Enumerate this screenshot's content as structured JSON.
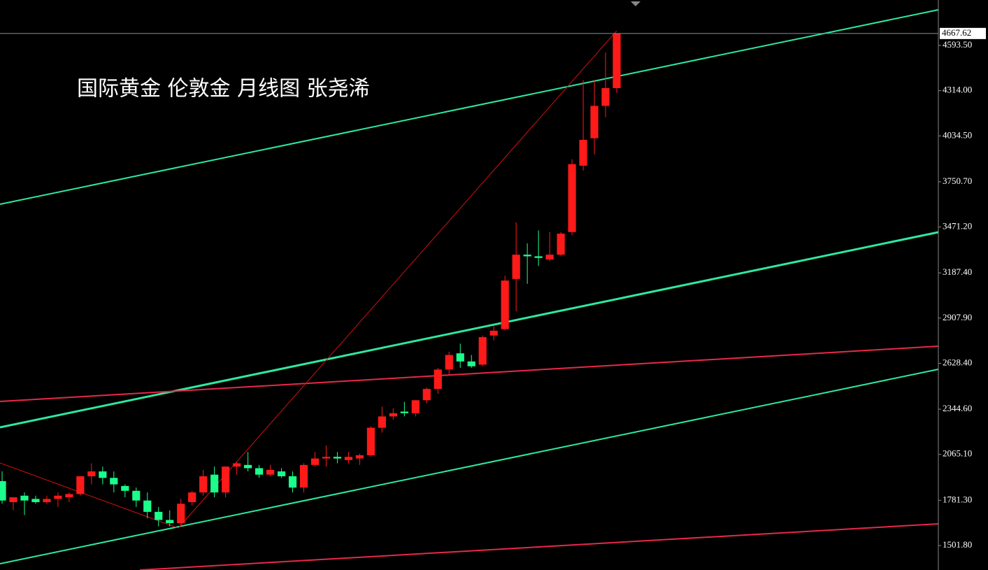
{
  "chart_data": {
    "type": "candlestick",
    "title": "国际黄金 伦敦金 月线图 张尧浠",
    "open": [
      1900,
      1770,
      1810,
      1790,
      1770,
      1790,
      1800,
      1820,
      1930,
      1960,
      1920,
      1870,
      1840,
      1780,
      1710,
      1660,
      1640,
      1770,
      1830,
      1940,
      1830,
      1990,
      2000,
      1980,
      1940,
      1960,
      1930,
      1860,
      2000,
      2040,
      2050,
      2030,
      2040,
      2060,
      2230,
      2300,
      2330,
      2320,
      2400,
      2470,
      2590,
      2690,
      2640,
      2620,
      2800,
      2840,
      3150,
      3300,
      3290,
      3270,
      3300,
      3440,
      3850,
      4020,
      4220,
      4330
    ],
    "high": [
      1960,
      1800,
      1830,
      1810,
      1810,
      1830,
      1830,
      1920,
      2010,
      1990,
      1960,
      1880,
      1860,
      1830,
      1740,
      1720,
      1790,
      1840,
      1970,
      1990,
      1990,
      2020,
      2080,
      2000,
      2000,
      1980,
      1960,
      2010,
      2080,
      2120,
      2080,
      2080,
      2070,
      2240,
      2360,
      2350,
      2390,
      2400,
      2480,
      2600,
      2700,
      2750,
      2680,
      2800,
      2860,
      3170,
      3500,
      3370,
      3450,
      3440,
      3440,
      3890,
      4380,
      4380,
      4550,
      4667.62
    ],
    "low": [
      1760,
      1720,
      1690,
      1760,
      1760,
      1740,
      1770,
      1810,
      1880,
      1880,
      1830,
      1800,
      1740,
      1670,
      1620,
      1620,
      1620,
      1750,
      1810,
      1800,
      1800,
      1940,
      1960,
      1920,
      1930,
      1920,
      1830,
      1830,
      1990,
      1990,
      2010,
      2010,
      2000,
      2050,
      2200,
      2280,
      2300,
      2300,
      2380,
      2440,
      2560,
      2600,
      2600,
      2610,
      2770,
      2830,
      2950,
      3120,
      3230,
      3260,
      3290,
      3420,
      3820,
      3920,
      4150,
      4300
    ],
    "close": [
      1780,
      1800,
      1780,
      1770,
      1790,
      1810,
      1820,
      1930,
      1960,
      1920,
      1880,
      1840,
      1780,
      1710,
      1660,
      1640,
      1760,
      1830,
      1930,
      1830,
      1990,
      2010,
      1980,
      1940,
      1970,
      1930,
      1860,
      2000,
      2040,
      2050,
      2040,
      2050,
      2060,
      2230,
      2300,
      2320,
      2320,
      2400,
      2470,
      2590,
      2680,
      2640,
      2610,
      2790,
      2830,
      3140,
      3300,
      3290,
      3280,
      3300,
      3430,
      3860,
      4010,
      4220,
      4330,
      4667.62
    ],
    "up_color": "#ff1a1a",
    "down_color": "#1aff8c",
    "last_price": {
      "value": 4667.62,
      "label": "4667.62"
    },
    "ylim": [
      1350.5,
      4874.6
    ],
    "yticks": [
      {
        "value": 4593.5,
        "label": "4593.50"
      },
      {
        "value": 4314,
        "label": "4314.00"
      },
      {
        "value": 4034.5,
        "label": "4034.50"
      },
      {
        "value": 3750.7,
        "label": "3750.70"
      },
      {
        "value": 3471.2,
        "label": "3471.20"
      },
      {
        "value": 3187.4,
        "label": "3187.40"
      },
      {
        "value": 2907.9,
        "label": "2907.90"
      },
      {
        "value": 2628.4,
        "label": "2628.40"
      },
      {
        "value": 2344.6,
        "label": "2344.60"
      },
      {
        "value": 2065.1,
        "label": "2065.10"
      },
      {
        "value": 1781.3,
        "label": "1781.30"
      },
      {
        "value": 1501.8,
        "label": "1501.80"
      }
    ]
  }
}
